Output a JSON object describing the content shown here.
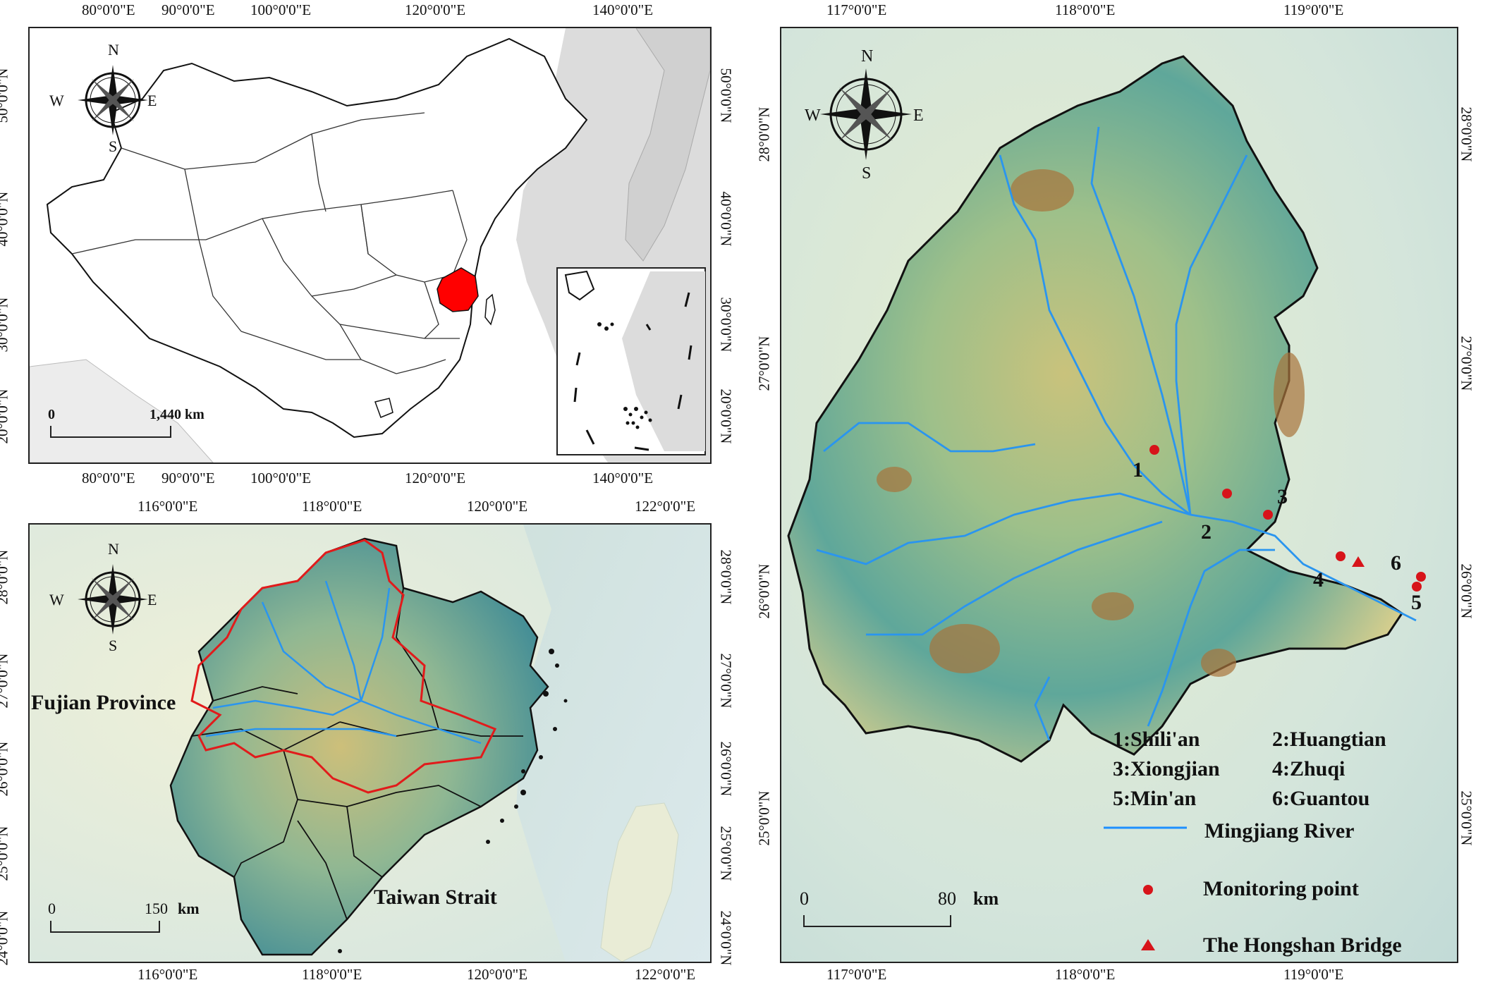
{
  "panel_a": {
    "lon_ticks": [
      "80°0'0\"E",
      "90°0'0\"E",
      "100°0'0\"E",
      "120°0'0\"E",
      "140°0'0\"E"
    ],
    "lat_ticks": [
      "50°0'0\"N",
      "40°0'0\"N",
      "30°0'0\"N",
      "20°0'0\"N"
    ],
    "compass": {
      "n": "N",
      "s": "S",
      "e": "E",
      "w": "W"
    },
    "scale": {
      "start": "0",
      "end": "1,440 km"
    },
    "highlight_color": "#ff0000"
  },
  "panel_b": {
    "lon_ticks": [
      "116°0'0\"E",
      "118°0'0\"E",
      "120°0'0\"E",
      "122°0'0\"E"
    ],
    "lat_ticks": [
      "28°0'0\"N",
      "27°0'0\"N",
      "26°0'0\"N",
      "25°0'0\"N",
      "24°0'0\"N"
    ],
    "compass": {
      "n": "N",
      "s": "S",
      "e": "E",
      "w": "W"
    },
    "province_label": "Fujian Province",
    "strait_label": "Taiwan Strait",
    "scale": {
      "start": "0",
      "end": "150",
      "unit": "km"
    },
    "basin_outline_color": "#e11b1b"
  },
  "panel_c": {
    "lon_ticks": [
      "117°0'0\"E",
      "118°0'0\"E",
      "119°0'0\"E"
    ],
    "lat_ticks": [
      "28°0'0\"N",
      "27°0'0\"N",
      "26°0'0\"N",
      "25°0'0\"N"
    ],
    "compass": {
      "n": "N",
      "s": "S",
      "e": "E",
      "w": "W"
    },
    "point_numbers": [
      "1",
      "2",
      "3",
      "4",
      "5",
      "6"
    ],
    "scale": {
      "start": "0",
      "end": "80",
      "unit": "km"
    },
    "legend": {
      "stations": [
        "1:Shili'an",
        "2:Huangtian",
        "3:Xiongjian",
        "4:Zhuqi",
        "5:Min'an",
        "6:Guantou"
      ],
      "river": "Mingjiang River",
      "monitoring": "Monitoring point",
      "bridge": "The Hongshan Bridge"
    },
    "river_color": "#1e90ff",
    "point_color": "#d7141a"
  }
}
